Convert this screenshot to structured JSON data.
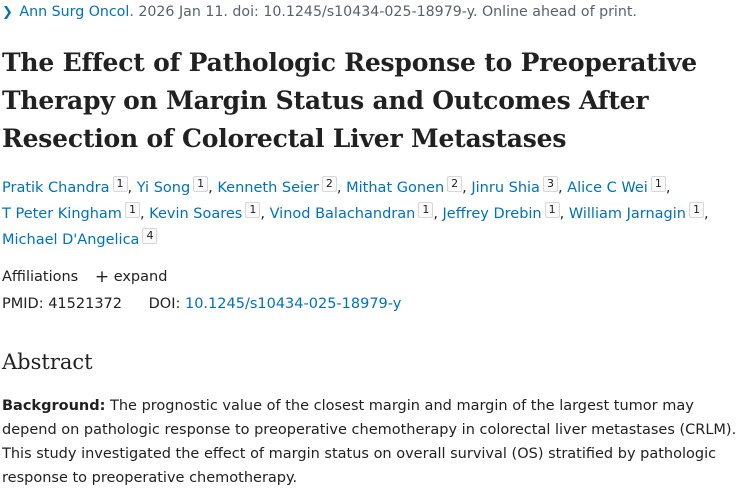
{
  "citation": {
    "journal": "Ann Surg Oncol",
    "details": ". 2026 Jan 11. doi: 10.1245/s10434-025-18979-y. Online ahead of print."
  },
  "title": "The Effect of Pathologic Response to Preoperative Therapy on Margin Status and Outcomes After Resection of Colorectal Liver Metastases",
  "authors": [
    {
      "name": "Pratik Chandra",
      "aff": "1"
    },
    {
      "name": "Yi Song",
      "aff": "1"
    },
    {
      "name": "Kenneth Seier",
      "aff": "2"
    },
    {
      "name": "Mithat Gonen",
      "aff": "2"
    },
    {
      "name": "Jinru Shia",
      "aff": "3"
    },
    {
      "name": "Alice C Wei",
      "aff": "1"
    },
    {
      "name": "T Peter Kingham",
      "aff": "1"
    },
    {
      "name": "Kevin Soares",
      "aff": "1"
    },
    {
      "name": "Vinod Balachandran",
      "aff": "1"
    },
    {
      "name": "Jeffrey Drebin",
      "aff": "1"
    },
    {
      "name": "William Jarnagin",
      "aff": "1"
    },
    {
      "name": "Michael D'Angelica",
      "aff": "4"
    }
  ],
  "affiliations": {
    "label": "Affiliations",
    "expand_label": "expand"
  },
  "ids": {
    "pmid_label": "PMID:",
    "pmid": "41521372",
    "doi_label": "DOI:",
    "doi": "10.1245/s10434-025-18979-y"
  },
  "abstract": {
    "heading": "Abstract",
    "background_label": "Background:",
    "background_text": " The prognostic value of the closest margin and margin of the largest tumor may depend on pathologic response to preoperative chemotherapy in colorectal liver metastases (CRLM). This study investigated the effect of margin status on overall survival (OS) stratified by pathologic response to preoperative chemotherapy."
  },
  "colors": {
    "link": "#0071bc",
    "text": "#212121",
    "muted": "#5b616b"
  }
}
